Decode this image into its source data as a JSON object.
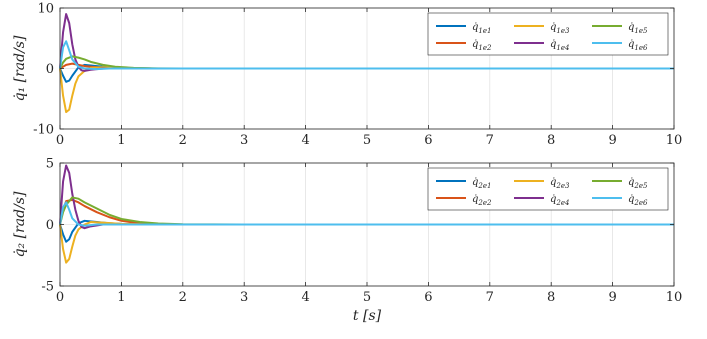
{
  "chart_data": [
    {
      "type": "line",
      "ylabel": "q̇₁ [rad/s]",
      "xlabel": "",
      "xlim": [
        0,
        10
      ],
      "ylim": [
        -10,
        10
      ],
      "yticks": [
        -10,
        0,
        10
      ],
      "xticks": [
        0,
        1,
        2,
        3,
        4,
        5,
        6,
        7,
        8,
        9,
        10
      ],
      "grid": true,
      "legend_position": "top-right",
      "series": [
        {
          "name": "q̇1e1",
          "label_main": "q̇",
          "label_sub": "1e1",
          "color": "#0072BD",
          "x": [
            0,
            0.05,
            0.1,
            0.15,
            0.2,
            0.3,
            0.4,
            0.6,
            0.8,
            1.0,
            1.5,
            2.0,
            3,
            10
          ],
          "y": [
            0,
            -1.2,
            -2.2,
            -2.0,
            -1.2,
            0.2,
            0.6,
            0.4,
            0.2,
            0.1,
            0,
            0,
            0,
            0
          ]
        },
        {
          "name": "q̇1e2",
          "label_main": "q̇",
          "label_sub": "1e2",
          "color": "#D95319",
          "x": [
            0,
            0.05,
            0.1,
            0.2,
            0.3,
            0.4,
            0.6,
            0.8,
            1.0,
            1.5,
            2.0,
            3,
            10
          ],
          "y": [
            0,
            0.3,
            0.6,
            0.8,
            0.6,
            0.4,
            0.2,
            0.1,
            0.05,
            0,
            0,
            0,
            0
          ]
        },
        {
          "name": "q̇1e3",
          "label_main": "q̇",
          "label_sub": "1e3",
          "color": "#EDB120",
          "x": [
            0,
            0.05,
            0.1,
            0.15,
            0.2,
            0.25,
            0.3,
            0.4,
            0.5,
            0.7,
            1.0,
            1.5,
            2.0,
            3,
            10
          ],
          "y": [
            0,
            -4.5,
            -7.2,
            -6.8,
            -4.5,
            -2.5,
            -1.3,
            -0.4,
            0.1,
            0.2,
            0.1,
            0,
            0,
            0,
            0
          ]
        },
        {
          "name": "q̇1e4",
          "label_main": "q̇",
          "label_sub": "1e4",
          "color": "#7E2F8E",
          "x": [
            0,
            0.05,
            0.1,
            0.15,
            0.2,
            0.25,
            0.3,
            0.35,
            0.4,
            0.5,
            0.7,
            1.0,
            1.5,
            2.0,
            10
          ],
          "y": [
            0,
            6.0,
            9.0,
            7.5,
            4.0,
            1.5,
            0.3,
            -0.3,
            -0.4,
            -0.2,
            0,
            0,
            0,
            0,
            0
          ]
        },
        {
          "name": "q̇1e5",
          "label_main": "q̇",
          "label_sub": "1e5",
          "color": "#77AC30",
          "x": [
            0,
            0.05,
            0.1,
            0.2,
            0.3,
            0.4,
            0.5,
            0.7,
            0.9,
            1.2,
            1.6,
            2.0,
            3,
            10
          ],
          "y": [
            0,
            1.0,
            1.6,
            2.0,
            1.8,
            1.5,
            1.1,
            0.6,
            0.3,
            0.1,
            0.03,
            0,
            0,
            0
          ]
        },
        {
          "name": "q̇1e6",
          "label_main": "q̇",
          "label_sub": "1e6",
          "color": "#4DBEEE",
          "x": [
            0,
            0.05,
            0.1,
            0.15,
            0.2,
            0.3,
            0.4,
            0.6,
            0.8,
            1.0,
            1.5,
            2.0,
            3,
            10
          ],
          "y": [
            0,
            3.5,
            4.5,
            3.0,
            1.5,
            0.3,
            0,
            -0.1,
            0,
            0,
            0,
            0,
            0,
            0
          ]
        }
      ]
    },
    {
      "type": "line",
      "ylabel": "q̇₂ [rad/s]",
      "xlabel": "t [s]",
      "xlim": [
        0,
        10
      ],
      "ylim": [
        -5,
        5
      ],
      "yticks": [
        -5,
        0,
        5
      ],
      "xticks": [
        0,
        1,
        2,
        3,
        4,
        5,
        6,
        7,
        8,
        9,
        10
      ],
      "grid": true,
      "legend_position": "top-right",
      "series": [
        {
          "name": "q̇2e1",
          "label_main": "q̇",
          "label_sub": "2e1",
          "color": "#0072BD",
          "x": [
            0,
            0.05,
            0.1,
            0.15,
            0.2,
            0.3,
            0.4,
            0.6,
            0.8,
            1.0,
            1.5,
            2.0,
            3,
            10
          ],
          "y": [
            0,
            -0.8,
            -1.4,
            -1.2,
            -0.6,
            0.1,
            0.3,
            0.2,
            0.1,
            0.05,
            0,
            0,
            0,
            0
          ]
        },
        {
          "name": "q̇2e2",
          "label_main": "q̇",
          "label_sub": "2e2",
          "color": "#D95319",
          "x": [
            0,
            0.05,
            0.1,
            0.2,
            0.3,
            0.4,
            0.6,
            0.8,
            1.0,
            1.3,
            1.6,
            2.0,
            3,
            10
          ],
          "y": [
            0,
            1.2,
            1.9,
            2.0,
            1.8,
            1.5,
            1.0,
            0.6,
            0.3,
            0.1,
            0.03,
            0,
            0,
            0
          ]
        },
        {
          "name": "q̇2e3",
          "label_main": "q̇",
          "label_sub": "2e3",
          "color": "#EDB120",
          "x": [
            0,
            0.05,
            0.1,
            0.15,
            0.2,
            0.25,
            0.3,
            0.4,
            0.5,
            0.7,
            1.0,
            1.5,
            2.0,
            3,
            10
          ],
          "y": [
            0,
            -2.0,
            -3.1,
            -2.8,
            -1.8,
            -0.9,
            -0.4,
            0,
            0.2,
            0.15,
            0.05,
            0,
            0,
            0,
            0
          ]
        },
        {
          "name": "q̇2e4",
          "label_main": "q̇",
          "label_sub": "2e4",
          "color": "#7E2F8E",
          "x": [
            0,
            0.05,
            0.1,
            0.15,
            0.2,
            0.25,
            0.3,
            0.35,
            0.4,
            0.5,
            0.7,
            1.0,
            1.5,
            2.0,
            10
          ],
          "y": [
            0,
            3.5,
            4.8,
            4.2,
            2.5,
            1.2,
            0.3,
            -0.2,
            -0.3,
            -0.15,
            0,
            0,
            0,
            0,
            0
          ]
        },
        {
          "name": "q̇2e5",
          "label_main": "q̇",
          "label_sub": "2e5",
          "color": "#77AC30",
          "x": [
            0,
            0.05,
            0.1,
            0.2,
            0.3,
            0.4,
            0.6,
            0.8,
            1.0,
            1.3,
            1.6,
            2.0,
            3,
            10
          ],
          "y": [
            0,
            1.0,
            1.6,
            2.2,
            2.1,
            1.8,
            1.3,
            0.8,
            0.45,
            0.2,
            0.08,
            0.02,
            0,
            0
          ]
        },
        {
          "name": "q̇2e6",
          "label_main": "q̇",
          "label_sub": "2e6",
          "color": "#4DBEEE",
          "x": [
            0,
            0.05,
            0.1,
            0.15,
            0.2,
            0.3,
            0.4,
            0.6,
            0.8,
            1.0,
            1.5,
            2.0,
            3,
            10
          ],
          "y": [
            0,
            1.4,
            1.8,
            1.2,
            0.5,
            0,
            -0.1,
            0,
            0,
            0,
            0,
            0,
            0,
            0
          ]
        }
      ]
    }
  ]
}
